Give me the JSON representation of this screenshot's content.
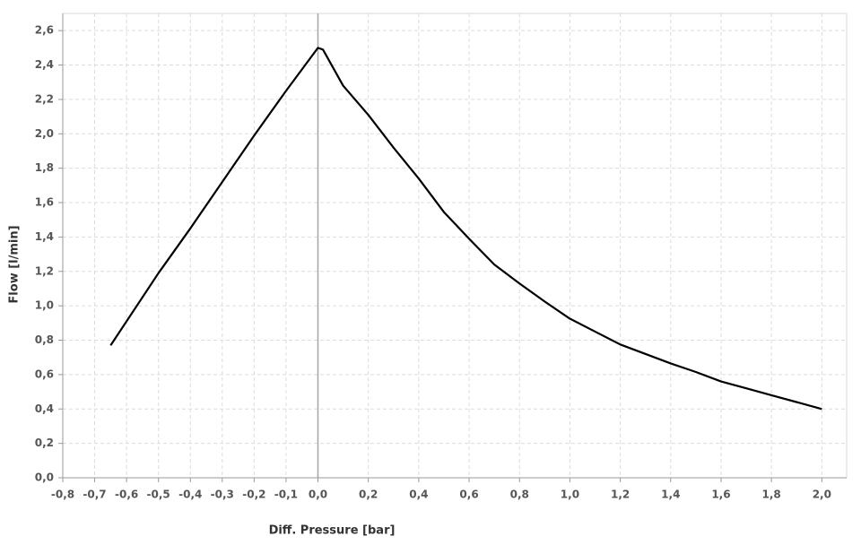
{
  "chart_data": {
    "type": "line",
    "x_label": "Diff. Pressure [bar]",
    "y_label": "Flow [l/min]",
    "x": [
      -0.65,
      -0.5,
      -0.4,
      -0.3,
      -0.2,
      -0.1,
      0,
      0.02,
      0.1,
      0.2,
      0.3,
      0.4,
      0.5,
      0.6,
      0.7,
      0.8,
      0.9,
      1.0,
      1.1,
      1.2,
      1.4,
      1.5,
      1.6,
      1.7,
      1.8,
      2.0
    ],
    "series": [
      {
        "color": "#000000",
        "values": [
          0.77,
          1.19,
          1.45,
          1.72,
          1.99,
          2.25,
          2.5,
          2.49,
          2.28,
          2.11,
          1.92,
          1.74,
          1.545,
          1.39,
          1.24,
          1.13,
          1.025,
          0.925,
          0.85,
          0.775,
          0.665,
          0.615,
          0.56,
          0.52,
          0.48,
          0.4
        ]
      }
    ],
    "xlim": [
      -0.8,
      2.1
    ],
    "ylim": [
      0,
      2.7
    ],
    "xticks": [
      {
        "value": -0.8,
        "label": "-0,8"
      },
      {
        "value": -0.7,
        "label": "-0,7"
      },
      {
        "value": -0.6,
        "label": "-0,6"
      },
      {
        "value": -0.5,
        "label": "-0,5"
      },
      {
        "value": -0.4,
        "label": "-0,4"
      },
      {
        "value": -0.3,
        "label": "-0,3"
      },
      {
        "value": -0.2,
        "label": "-0,2"
      },
      {
        "value": -0.1,
        "label": "-0,1"
      },
      {
        "value": 0,
        "label": "0,0"
      },
      {
        "value": 0.2,
        "label": "0,2"
      },
      {
        "value": 0.4,
        "label": "0,4"
      },
      {
        "value": 0.6,
        "label": "0,6"
      },
      {
        "value": 0.8,
        "label": "0,8"
      },
      {
        "value": 1.0,
        "label": "1,0"
      },
      {
        "value": 1.2,
        "label": "1,2"
      },
      {
        "value": 1.4,
        "label": "1,4"
      },
      {
        "value": 1.6,
        "label": "1,6"
      },
      {
        "value": 1.8,
        "label": "1,8"
      },
      {
        "value": 2.0,
        "label": "2,0"
      }
    ],
    "yticks": [
      {
        "value": 0,
        "label": "0,0"
      },
      {
        "value": 0.2,
        "label": "0,2"
      },
      {
        "value": 0.4,
        "label": "0,4"
      },
      {
        "value": 0.6,
        "label": "0,6"
      },
      {
        "value": 0.8,
        "label": "0,8"
      },
      {
        "value": 1.0,
        "label": "1,0"
      },
      {
        "value": 1.2,
        "label": "1,2"
      },
      {
        "value": 1.4,
        "label": "1,4"
      },
      {
        "value": 1.6,
        "label": "1,6"
      },
      {
        "value": 1.8,
        "label": "1,8"
      },
      {
        "value": 2.0,
        "label": "2,0"
      },
      {
        "value": 2.2,
        "label": "2,2"
      },
      {
        "value": 2.4,
        "label": "2,4"
      },
      {
        "value": 2.6,
        "label": "2,6"
      }
    ],
    "grid": true
  }
}
